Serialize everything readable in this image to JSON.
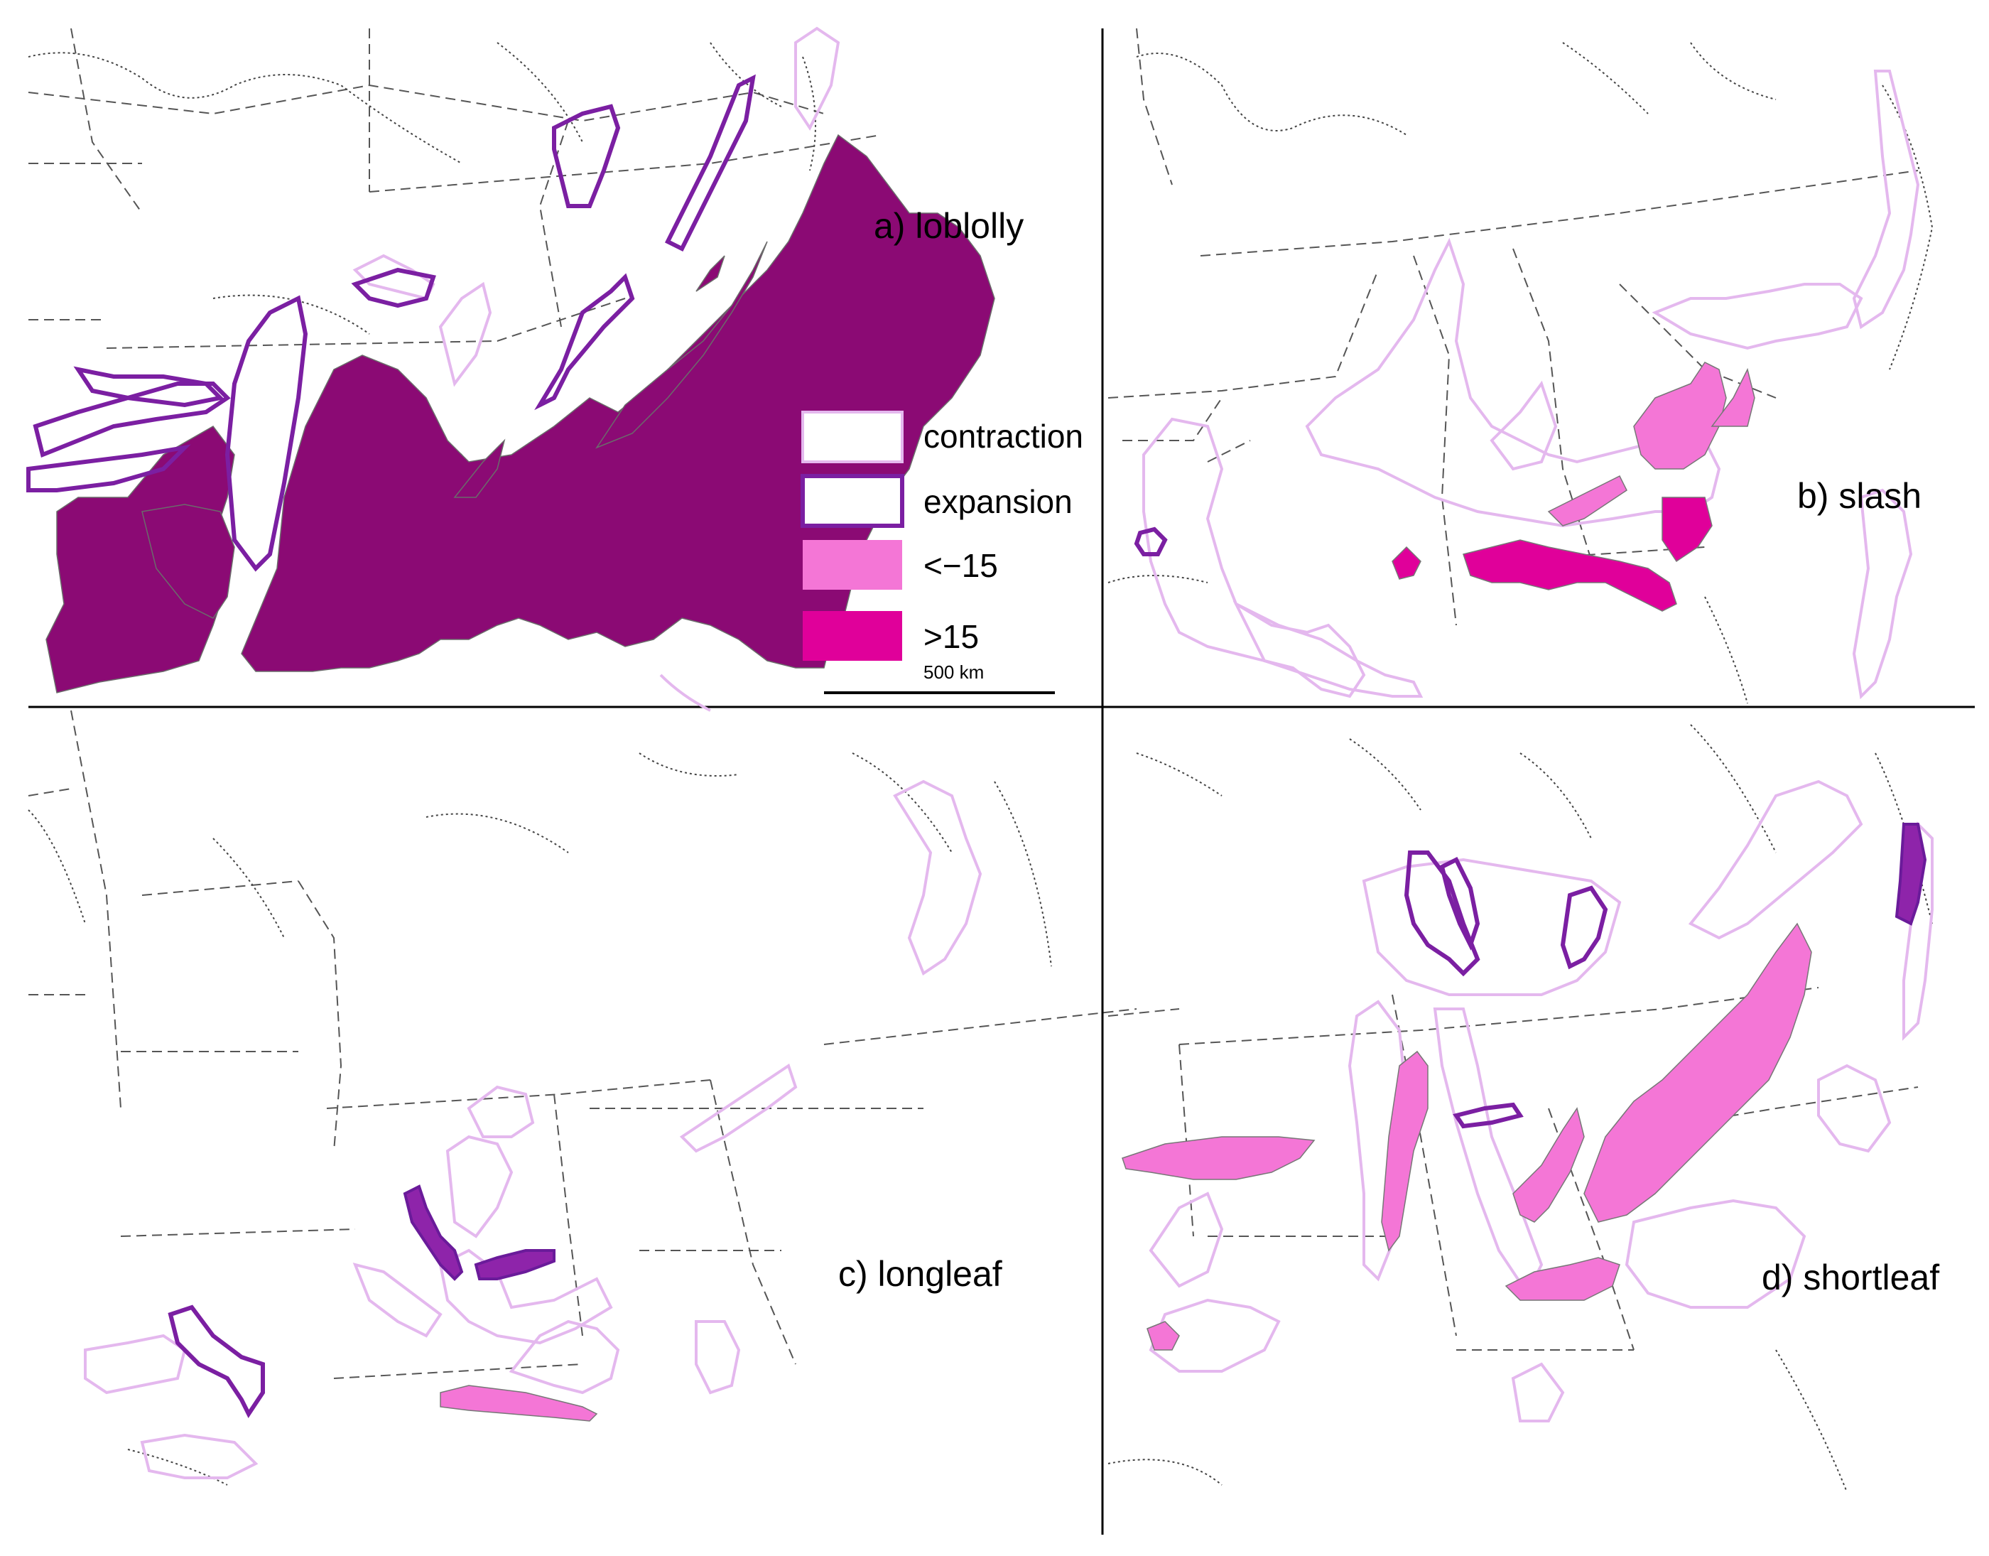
{
  "panels": {
    "a": "a) loblolly",
    "b": "b) slash",
    "c": "c) longleaf",
    "d": "d) shortleaf"
  },
  "legend": {
    "contraction": "contraction",
    "expansion": "expansion",
    "neg": "<−15",
    "pos": ">15"
  },
  "scale_bar": "500 km",
  "colors": {
    "contraction": "#e4b8ee",
    "expansion": "#7b1fa2",
    "loblolly_range": "#8b0a74",
    "neg15": "#f476d6",
    "pos15": "#e0009a"
  }
}
